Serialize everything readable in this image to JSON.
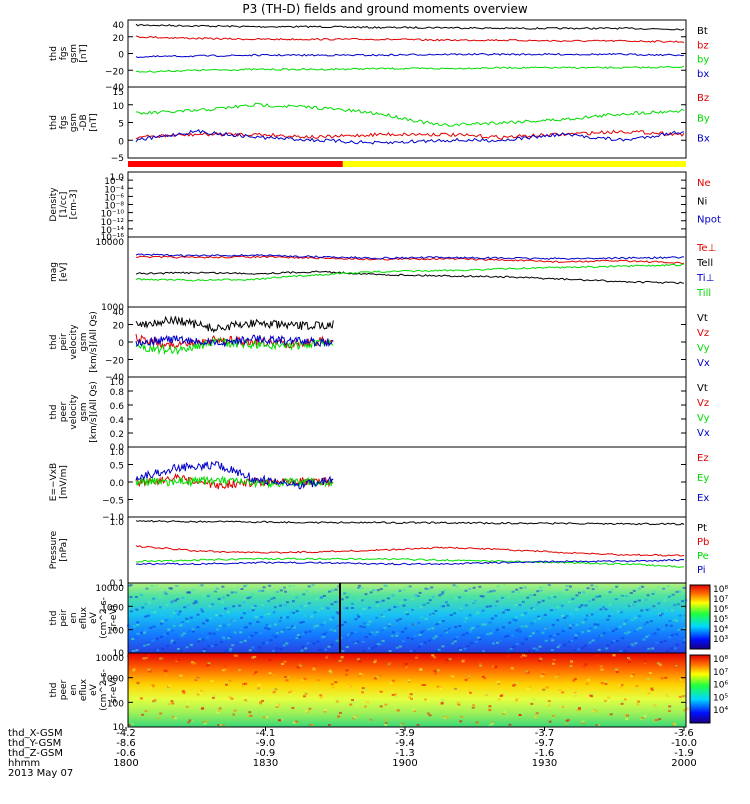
{
  "title": "P3 (TH-D) fields and ground moments overview",
  "colors": {
    "black": "#000000",
    "red": "#e00000",
    "green": "#00dd00",
    "blue": "#0000c8",
    "yellow": "#ffff00",
    "fgm_red": "#ff0000"
  },
  "bars": {
    "mode_colors": [
      "red",
      "yellow"
    ]
  },
  "chart_data": [
    {
      "type": "line",
      "ylabel": [
        "thd",
        "fgs",
        "gsm",
        "[nT]"
      ],
      "yticks": [
        "40",
        "20",
        "0",
        "−20",
        "−40"
      ],
      "series": [
        {
          "name": "Bt",
          "color": "black",
          "values": [
            34,
            33,
            32,
            32,
            31,
            31,
            30,
            30,
            30,
            29
          ]
        },
        {
          "name": "bz",
          "color": "red",
          "values": [
            20,
            18,
            17,
            17,
            17,
            16,
            16,
            15,
            15,
            14
          ]
        },
        {
          "name": "by",
          "color": "green",
          "values": [
            -22,
            -20,
            -19,
            -19,
            -18,
            -18,
            -17,
            -17,
            -17,
            -16
          ]
        },
        {
          "name": "bx",
          "color": "blue",
          "values": [
            -4,
            -3,
            -2,
            -2,
            -2,
            -1,
            -1,
            -1,
            -1,
            -2
          ]
        }
      ]
    },
    {
      "type": "line",
      "ylabel": [
        "thd",
        "fgs",
        "gsm",
        "-DB",
        "[nT]"
      ],
      "yticks": [
        "15",
        "10",
        "5",
        "0",
        "−5"
      ],
      "series": [
        {
          "name": "Bz",
          "color": "red",
          "values": [
            0,
            1,
            1,
            0,
            1,
            1,
            0,
            1,
            2,
            1
          ]
        },
        {
          "name": "By",
          "color": "green",
          "values": [
            8,
            9,
            11,
            10,
            8,
            4,
            5,
            6,
            8,
            9
          ]
        },
        {
          "name": "Bx",
          "color": "blue",
          "values": [
            -1,
            2,
            0,
            -1,
            -2,
            -1,
            -1,
            1,
            -1,
            2
          ]
        }
      ]
    },
    {
      "type": "line",
      "ylabel": [
        "Density",
        "[1/cc]",
        "[cm-3]"
      ],
      "yticks": [
        "1.0",
        "10⁻²",
        "10⁻⁴",
        "10⁻⁶",
        "10⁻⁸",
        "10⁻¹⁰",
        "10⁻¹²",
        "10⁻¹⁴",
        "10⁻¹⁶"
      ],
      "series": [
        {
          "name": "Ne",
          "color": "red",
          "values": []
        },
        {
          "name": "Ni",
          "color": "black",
          "values": []
        },
        {
          "name": "Npot",
          "color": "blue",
          "values": []
        }
      ]
    },
    {
      "type": "line",
      "ylabel": [
        "mag",
        "[eV]"
      ],
      "yticks": [
        "10000",
        "1000"
      ],
      "series": [
        {
          "name": "Te⊥",
          "color": "red",
          "values": [
            5200,
            5100,
            5200,
            5000,
            4800,
            4900,
            4700,
            4400,
            4600,
            4200
          ]
        },
        {
          "name": "Tell",
          "color": "black",
          "values": [
            3000,
            3100,
            3000,
            3200,
            2900,
            2800,
            2700,
            2500,
            2300,
            2200
          ]
        },
        {
          "name": "Ti⊥",
          "color": "blue",
          "values": [
            5600,
            5400,
            5500,
            5200,
            5000,
            5100,
            5000,
            4900,
            5000,
            5100
          ]
        },
        {
          "name": "Till",
          "color": "green",
          "values": [
            2500,
            2400,
            2500,
            2900,
            3200,
            3300,
            3500,
            3700,
            3800,
            4000
          ]
        }
      ]
    },
    {
      "type": "line",
      "ylabel": [
        "thd",
        "peir",
        "velocity",
        "gsm",
        "[km/s](All Qs)"
      ],
      "yticks": [
        "40",
        "20",
        "0",
        "−20",
        "−40"
      ],
      "series": [
        {
          "name": "Vt",
          "color": "black",
          "values": [
            20,
            25,
            15,
            22,
            18,
            20
          ]
        },
        {
          "name": "Vz",
          "color": "red",
          "values": [
            5,
            -5,
            3,
            0,
            -2,
            2
          ]
        },
        {
          "name": "Vy",
          "color": "green",
          "values": [
            -5,
            -10,
            0,
            -3,
            -4,
            0
          ]
        },
        {
          "name": "Vx",
          "color": "blue",
          "values": [
            0,
            3,
            -2,
            4,
            1,
            -1
          ]
        }
      ]
    },
    {
      "type": "line",
      "ylabel": [
        "thd",
        "peer",
        "velocity",
        "gsm",
        "[km/s](All Qs)"
      ],
      "yticks": [
        "1.0",
        "0.8",
        "0.6",
        "0.4",
        "0.2",
        "0.0"
      ],
      "series": [
        {
          "name": "Vt",
          "color": "black",
          "values": []
        },
        {
          "name": "Vz",
          "color": "red",
          "values": []
        },
        {
          "name": "Vy",
          "color": "green",
          "values": []
        },
        {
          "name": "Vx",
          "color": "blue",
          "values": []
        }
      ]
    },
    {
      "type": "line",
      "ylabel": [
        "E=−VxB",
        "[mV/m]"
      ],
      "yticks": [
        "1.0",
        "0.5",
        "0.0",
        "−0.5",
        "−1.0"
      ],
      "series": [
        {
          "name": "Ez",
          "color": "red",
          "values": [
            0.0,
            0.1,
            -0.1,
            0.0,
            0.05,
            0.0
          ]
        },
        {
          "name": "Ey",
          "color": "green",
          "values": [
            0.0,
            0.0,
            0.05,
            -0.05,
            0.0,
            0.0
          ]
        },
        {
          "name": "Ex",
          "color": "blue",
          "values": [
            0.1,
            0.4,
            0.5,
            0.1,
            -0.1,
            0.05
          ]
        }
      ]
    },
    {
      "type": "line",
      "ylabel": [
        "Pressure",
        "[nPa]"
      ],
      "yticks": [
        "1.0",
        "0.1"
      ],
      "series": [
        {
          "name": "Pt",
          "color": "black",
          "values": [
            0.95,
            0.93,
            0.92,
            0.9,
            0.9,
            0.89,
            0.88,
            0.87,
            0.86,
            0.85
          ]
        },
        {
          "name": "Pb",
          "color": "red",
          "values": [
            0.38,
            0.32,
            0.3,
            0.31,
            0.33,
            0.36,
            0.34,
            0.3,
            0.28,
            0.27
          ]
        },
        {
          "name": "Pe",
          "color": "green",
          "values": [
            0.22,
            0.23,
            0.24,
            0.24,
            0.24,
            0.23,
            0.22,
            0.21,
            0.2,
            0.18
          ]
        },
        {
          "name": "Pi",
          "color": "blue",
          "values": [
            0.2,
            0.2,
            0.21,
            0.21,
            0.2,
            0.2,
            0.21,
            0.22,
            0.22,
            0.23
          ]
        }
      ]
    },
    {
      "type": "heatmap",
      "ylabel": [
        "thd",
        "peir",
        "en",
        "eflux",
        "eV",
        "(cm^2-s-",
        "sr-eV)"
      ],
      "yticks": [
        "10000",
        "1000",
        "100",
        "10"
      ],
      "colorbar": [
        "10⁸",
        "10⁷",
        "10⁶",
        "10⁵",
        "10⁴",
        "10³"
      ]
    },
    {
      "type": "heatmap",
      "ylabel": [
        "thd",
        "peer",
        "en",
        "eflux",
        "eV",
        "(cm^2-s-",
        "sr-eV)"
      ],
      "yticks": [
        "10000",
        "1000",
        "100",
        "10"
      ],
      "colorbar": [
        "10⁸",
        "10⁷",
        "10⁶",
        "10⁵",
        "10⁴"
      ]
    }
  ],
  "xaxis": {
    "row_labels": [
      "thd_X-GSM",
      "thd_Y-GSM",
      "thd_Z-GSM",
      "hhmm",
      "2013 May 07"
    ],
    "columns": [
      [
        "-4.2",
        "-8.6",
        "-0.6",
        "1800"
      ],
      [
        "-4.1",
        "-9.0",
        "-0.9",
        "1830"
      ],
      [
        "-3.9",
        "-9.4",
        "-1.3",
        "1900"
      ],
      [
        "-3.7",
        "-9.7",
        "-1.6",
        "1930"
      ],
      [
        "-3.6",
        "-10.0",
        "-1.9",
        "2000"
      ]
    ]
  }
}
